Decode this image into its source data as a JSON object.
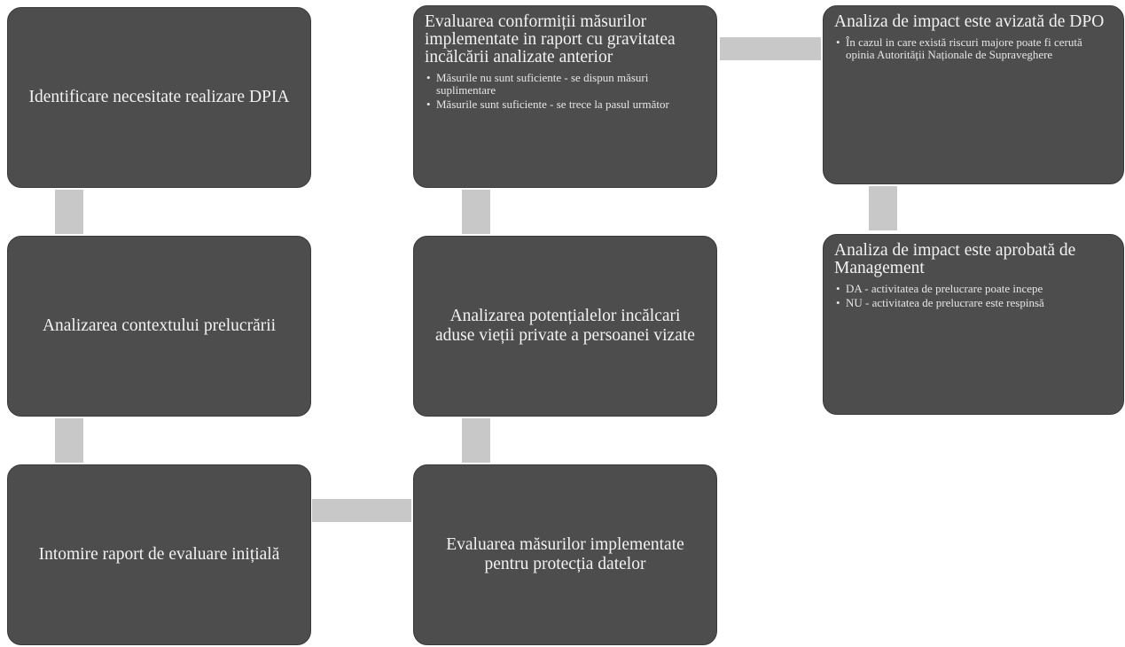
{
  "colors": {
    "box_fill": "#4d4d4d",
    "box_text": "#f2f2f2",
    "connector": "#c8c8c8",
    "background": "#ffffff"
  },
  "steps": {
    "identificare": {
      "title": "Identificare necesitate realizare DPIA"
    },
    "context": {
      "title": "Analizarea contextului prelucrării"
    },
    "raport": {
      "title": "Intomire raport de evaluare inițială"
    },
    "masuri": {
      "title": "Evaluarea măsurilor implementate pentru protecția datelor"
    },
    "incalcari": {
      "title": "Analizarea potențialelor incălcari aduse vieții private a persoanei vizate"
    },
    "conformitate": {
      "title": "Evaluarea conformiții măsurilor implementate in raport cu gravitatea incălcării analizate anterior",
      "bullets": [
        "Măsurile nu sunt suficiente - se dispun măsuri suplimentare",
        "Măsurile sunt suficiente - se trece la pasul următor"
      ]
    },
    "dpo": {
      "title": "Analiza de impact este avizată de DPO",
      "bullets": [
        "În cazul in care există riscuri majore poate fi cerută opinia Autorității Naționale de Supraveghere"
      ]
    },
    "management": {
      "title": "Analiza de impact este aprobată de Management",
      "bullets": [
        "DA - activitatea de prelucrare poate incepe",
        "NU - activitatea de prelucrare este respinsă"
      ]
    }
  }
}
